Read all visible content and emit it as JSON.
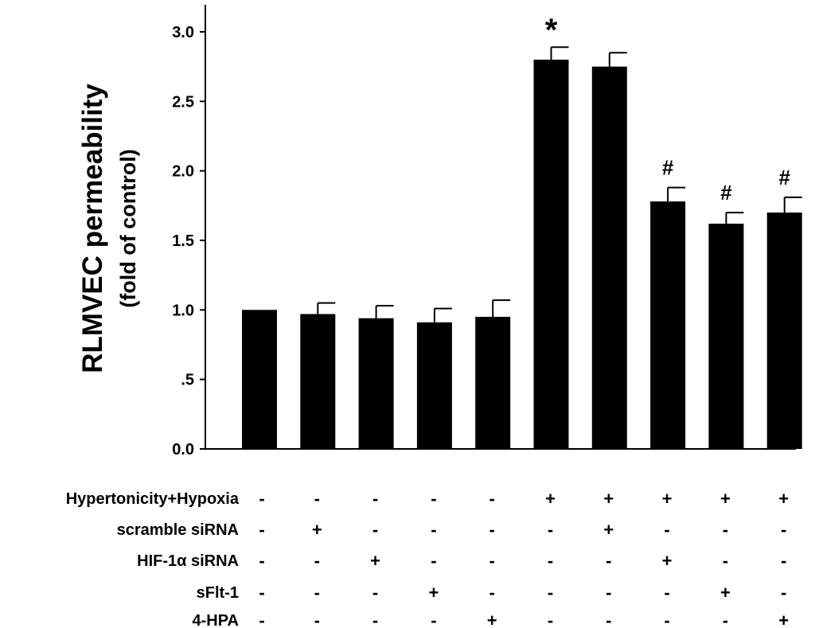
{
  "chart_data": {
    "type": "bar",
    "title": "",
    "xlabel": "",
    "ylabel_line1": "RLMVEC permeability",
    "ylabel_line2": "(fold of control)",
    "ylim": [
      0,
      3.2
    ],
    "yticks": [
      0,
      0.5,
      1.0,
      1.5,
      2.0,
      2.5,
      3.0
    ],
    "ytick_labels": [
      "0.0",
      ".5",
      "1.0",
      "1.5",
      "2.0",
      "2.5",
      "3.0"
    ],
    "grid": false,
    "values": [
      1.0,
      0.97,
      0.94,
      0.91,
      0.95,
      2.8,
      2.75,
      1.78,
      1.62,
      1.7
    ],
    "errors": [
      0.0,
      0.08,
      0.09,
      0.1,
      0.12,
      0.09,
      0.1,
      0.1,
      0.08,
      0.11
    ],
    "annotations": [
      "",
      "",
      "",
      "",
      "",
      "*",
      "",
      "#",
      "#",
      "#"
    ],
    "condition_rows": [
      {
        "label": "Hypertonicity+Hypoxia",
        "signs": [
          "-",
          "-",
          "-",
          "-",
          "-",
          "+",
          "+",
          "+",
          "+",
          "+"
        ]
      },
      {
        "label": "scramble siRNA",
        "signs": [
          "-",
          "+",
          "-",
          "-",
          "-",
          "-",
          "+",
          "-",
          "-",
          "-"
        ]
      },
      {
        "label": "HIF-1α siRNA",
        "signs": [
          "-",
          "-",
          "+",
          "-",
          "-",
          "-",
          "-",
          "+",
          "-",
          "-"
        ]
      },
      {
        "label": "sFlt-1",
        "signs": [
          "-",
          "-",
          "-",
          "+",
          "-",
          "-",
          "-",
          "-",
          "+",
          "-"
        ]
      },
      {
        "label": "4-HPA",
        "signs": [
          "-",
          "-",
          "-",
          "-",
          "+",
          "-",
          "-",
          "-",
          "-",
          "+"
        ]
      }
    ]
  }
}
